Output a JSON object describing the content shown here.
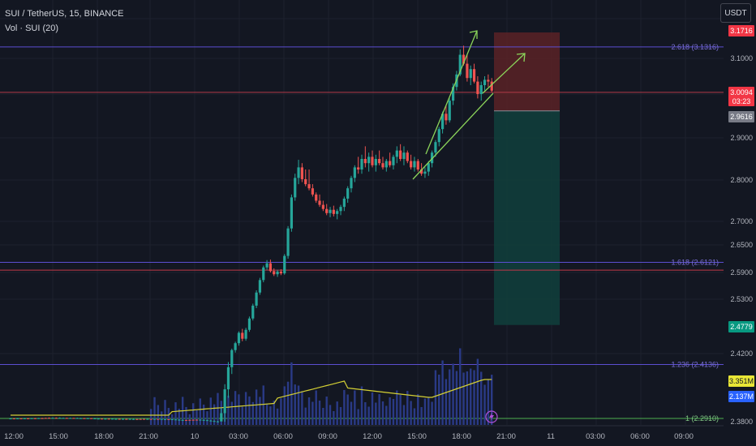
{
  "legend": {
    "symbol": "SUI / TetherUS, 15, BINANCE",
    "volume": "Vol · SUI (20)"
  },
  "currency_button": "USDT",
  "colors": {
    "background": "#131722",
    "grid": "#1e222d",
    "up": "#26a69a",
    "down": "#ef5350",
    "fib_line": "#5b4ed1",
    "fib_label": "#7a6fd6",
    "fib_line_1": "#4caf50",
    "volume_ma": "#d4d034",
    "volume_bar": "#2a3a86",
    "arrow": "#8bd45a",
    "stop_zone": "#5b2226",
    "target_zone": "#11403c"
  },
  "chart_data": {
    "type": "candlestick",
    "symbol": "SUI / TetherUS",
    "interval": "15",
    "exchange": "BINANCE",
    "x_tick_labels": [
      "12:00",
      "15:00",
      "18:00",
      "21:00",
      "10",
      "03:00",
      "06:00",
      "09:00",
      "12:00",
      "15:00",
      "18:00",
      "21:00",
      "11",
      "03:00",
      "06:00",
      "09:00"
    ],
    "y_tick_labels": [
      "3.1000",
      "2.9000",
      "2.8000",
      "2.7000",
      "2.6500",
      "2.5900",
      "2.5300",
      "2.4200",
      "2.3800"
    ],
    "fib_levels": [
      {
        "label": "2.618 (3.1316)",
        "value": 3.1316
      },
      {
        "label": "1.618 (2.6121)",
        "value": 2.6121
      },
      {
        "label": "1.236 (2.4136)",
        "value": 2.4136
      },
      {
        "label": "1 (2.2910)",
        "value": 2.291
      }
    ],
    "price_tags": [
      {
        "text": "3.1716",
        "value": 3.1716,
        "color": "#f23645"
      },
      {
        "text": "3.0094",
        "sub": "03:23",
        "value": 3.0094,
        "color": "#f23645"
      },
      {
        "text": "2.9616",
        "value": 2.9616,
        "color": "#787b86"
      },
      {
        "text": "2.4779",
        "value": 2.4779,
        "color": "#089981"
      },
      {
        "text": "3.351M",
        "color": "#e9e636",
        "text_color": "#131722"
      },
      {
        "text": "2.137M",
        "color": "#2962ff",
        "text_color": "#ffffff"
      }
    ],
    "position": {
      "entry": 2.9616,
      "stop": 3.1716,
      "target": 2.4779
    },
    "last_price": 3.0094,
    "candles": [
      {
        "t": 0,
        "o": 2.2892,
        "h": 2.295,
        "l": 2.2848,
        "c": 2.2921
      },
      {
        "t": 1,
        "o": 2.2921,
        "h": 2.2962,
        "l": 2.2868,
        "c": 2.289
      },
      {
        "t": 2,
        "o": 2.289,
        "h": 2.2939,
        "l": 2.2847,
        "c": 2.2913
      },
      {
        "t": 3,
        "o": 2.2913,
        "h": 2.2958,
        "l": 2.2869,
        "c": 2.2886
      },
      {
        "t": 4,
        "o": 2.2886,
        "h": 2.2925,
        "l": 2.2847,
        "c": 2.2908
      },
      {
        "t": 5,
        "o": 2.2908,
        "h": 2.2945,
        "l": 2.2852,
        "c": 2.2879
      },
      {
        "t": 6,
        "o": 2.2879,
        "h": 2.2916,
        "l": 2.2841,
        "c": 2.2892
      },
      {
        "t": 7,
        "o": 2.2892,
        "h": 2.293,
        "l": 2.2844,
        "c": 2.2868
      },
      {
        "t": 8,
        "o": 2.2868,
        "h": 2.2898,
        "l": 2.2835,
        "c": 2.288
      },
      {
        "t": 9,
        "o": 2.288,
        "h": 2.2911,
        "l": 2.283,
        "c": 2.2855
      },
      {
        "t": 10,
        "o": 2.2855,
        "h": 2.2885,
        "l": 2.2812,
        "c": 2.2836
      },
      {
        "t": 11,
        "o": 2.2836,
        "h": 2.2868,
        "l": 2.2791,
        "c": 2.2815
      },
      {
        "t": 12,
        "o": 2.2815,
        "h": 2.2849,
        "l": 2.278,
        "c": 2.2834
      },
      {
        "t": 13,
        "o": 2.2834,
        "h": 2.2868,
        "l": 2.2794,
        "c": 2.2812
      },
      {
        "t": 14,
        "o": 2.2812,
        "h": 2.2846,
        "l": 2.278,
        "c": 2.283
      },
      {
        "t": 15,
        "o": 2.283,
        "h": 2.2872,
        "l": 2.28,
        "c": 2.2852
      },
      {
        "t": 16,
        "o": 2.2852,
        "h": 2.2888,
        "l": 2.2818,
        "c": 2.284
      },
      {
        "t": 17,
        "o": 2.284,
        "h": 2.2879,
        "l": 2.2804,
        "c": 2.2862
      },
      {
        "t": 18,
        "o": 2.2862,
        "h": 2.2895,
        "l": 2.2828,
        "c": 2.2845
      },
      {
        "t": 19,
        "o": 2.2845,
        "h": 2.288,
        "l": 2.2809,
        "c": 2.2866
      },
      {
        "t": 20,
        "o": 2.2866,
        "h": 2.2902,
        "l": 2.283,
        "c": 2.2884
      },
      {
        "t": 21,
        "o": 2.2884,
        "h": 2.2918,
        "l": 2.2846,
        "c": 2.2868
      },
      {
        "t": 22,
        "o": 2.2868,
        "h": 2.2906,
        "l": 2.2832,
        "c": 2.289
      },
      {
        "t": 23,
        "o": 2.289,
        "h": 2.2925,
        "l": 2.2855,
        "c": 2.2874
      },
      {
        "t": 24,
        "o": 2.2874,
        "h": 2.294,
        "l": 2.284,
        "c": 2.2925
      },
      {
        "t": 25,
        "o": 2.2925,
        "h": 2.2998,
        "l": 2.2888,
        "c": 2.297
      },
      {
        "t": 26,
        "o": 2.297,
        "h": 2.3032,
        "l": 2.293,
        "c": 2.2951
      },
      {
        "t": 27,
        "o": 2.2951,
        "h": 2.3015,
        "l": 2.2918,
        "c": 2.2992
      },
      {
        "t": 28,
        "o": 2.2992,
        "h": 2.3045,
        "l": 2.295,
        "c": 2.2966
      },
      {
        "t": 29,
        "o": 2.2966,
        "h": 2.302,
        "l": 2.2928,
        "c": 2.2998
      },
      {
        "t": 30,
        "o": 2.2998,
        "h": 2.3062,
        "l": 2.2965,
        "c": 2.304
      },
      {
        "t": 31,
        "o": 2.304,
        "h": 2.3098,
        "l": 2.3002,
        "c": 2.3018
      },
      {
        "t": 32,
        "o": 2.3018,
        "h": 2.307,
        "l": 2.298,
        "c": 2.3052
      },
      {
        "t": 33,
        "o": 2.3052,
        "h": 2.3118,
        "l": 2.301,
        "c": 2.303
      },
      {
        "t": 34,
        "o": 2.303,
        "h": 2.3085,
        "l": 2.2992,
        "c": 2.3064
      },
      {
        "t": 35,
        "o": 2.3064,
        "h": 2.3126,
        "l": 2.303,
        "c": 2.3096
      },
      {
        "t": 36,
        "o": 2.3096,
        "h": 2.3148,
        "l": 2.3054,
        "c": 2.307
      },
      {
        "t": 37,
        "o": 2.307,
        "h": 2.312,
        "l": 2.303,
        "c": 2.3045
      },
      {
        "t": 38,
        "o": 2.3045,
        "h": 2.3098,
        "l": 2.3008,
        "c": 2.3022
      },
      {
        "t": 39,
        "o": 2.3022,
        "h": 2.3075,
        "l": 2.2985,
        "c": 2.3054
      },
      {
        "t": 40,
        "o": 2.3054,
        "h": 2.31,
        "l": 2.3012,
        "c": 2.303
      },
      {
        "t": 41,
        "o": 2.303,
        "h": 2.308,
        "l": 2.2995,
        "c": 2.3062
      },
      {
        "t": 42,
        "o": 2.3062,
        "h": 2.311,
        "l": 2.302,
        "c": 2.304
      },
      {
        "t": 43,
        "o": 2.304,
        "h": 2.3092,
        "l": 2.3,
        "c": 2.3078
      },
      {
        "t": 44,
        "o": 2.3078,
        "h": 2.314,
        "l": 2.3042,
        "c": 2.3118
      },
      {
        "t": 45,
        "o": 2.3118,
        "h": 2.317,
        "l": 2.307,
        "c": 2.309
      },
      {
        "t": 46,
        "o": 2.309,
        "h": 2.315,
        "l": 2.305,
        "c": 2.3134
      },
      {
        "t": 47,
        "o": 2.3134,
        "h": 2.3218,
        "l": 2.31,
        "c": 2.319
      },
      {
        "t": 48,
        "o": 2.319,
        "h": 2.3288,
        "l": 2.315,
        "c": 2.326
      },
      {
        "t": 49,
        "o": 2.326,
        "h": 2.3368,
        "l": 2.322,
        "c": 2.334
      },
      {
        "t": 50,
        "o": 2.334,
        "h": 2.3418,
        "l": 2.329,
        "c": 2.331
      },
      {
        "t": 51,
        "o": 2.331,
        "h": 2.337,
        "l": 2.3255,
        "c": 2.328
      },
      {
        "t": 52,
        "o": 2.328,
        "h": 2.334,
        "l": 2.323,
        "c": 2.3255
      },
      {
        "t": 53,
        "o": 2.3255,
        "h": 2.331,
        "l": 2.3205,
        "c": 2.3225
      },
      {
        "t": 54,
        "o": 2.3225,
        "h": 2.3288,
        "l": 2.318,
        "c": 2.3262
      },
      {
        "t": 55,
        "o": 2.3262,
        "h": 2.3345,
        "l": 2.322,
        "c": 2.332
      },
      {
        "t": 56,
        "o": 2.332,
        "h": 2.342,
        "l": 2.3285,
        "c": 2.339
      },
      {
        "t": 57,
        "o": 2.339,
        "h": 2.353,
        "l": 2.335,
        "c": 2.35
      },
      {
        "t": 58,
        "o": 2.35,
        "h": 2.365,
        "l": 2.346,
        "c": 2.362
      },
      {
        "t": 59,
        "o": 2.362,
        "h": 2.377,
        "l": 2.358,
        "c": 2.374
      },
      {
        "t": 60,
        "o": 2.374,
        "h": 2.388,
        "l": 2.369,
        "c": 2.385
      },
      {
        "t": 61,
        "o": 2.385,
        "h": 2.402,
        "l": 2.38,
        "c": 2.399
      },
      {
        "t": 62,
        "o": 2.399,
        "h": 2.415,
        "l": 2.394,
        "c": 2.412
      },
      {
        "t": 63,
        "o": 2.412,
        "h": 2.43,
        "l": 2.408,
        "c": 2.427
      },
      {
        "t": 64,
        "o": 2.427,
        "h": 2.444,
        "l": 2.422,
        "c": 2.441
      },
      {
        "t": 65,
        "o": 2.441,
        "h": 2.465,
        "l": 2.436,
        "c": 2.462
      },
      {
        "t": 66,
        "o": 2.462,
        "h": 2.47,
        "l": 2.445,
        "c": 2.45
      },
      {
        "t": 67,
        "o": 2.45,
        "h": 2.472,
        "l": 2.446,
        "c": 2.468
      },
      {
        "t": 68,
        "o": 2.468,
        "h": 2.495,
        "l": 2.464,
        "c": 2.491
      },
      {
        "t": 69,
        "o": 2.491,
        "h": 2.521,
        "l": 2.487,
        "c": 2.517
      },
      {
        "t": 70,
        "o": 2.517,
        "h": 2.55,
        "l": 2.512,
        "c": 2.545
      },
      {
        "t": 71,
        "o": 2.545,
        "h": 2.578,
        "l": 2.54,
        "c": 2.573
      },
      {
        "t": 72,
        "o": 2.573,
        "h": 2.605,
        "l": 2.568,
        "c": 2.601
      },
      {
        "t": 73,
        "o": 2.601,
        "h": 2.617,
        "l": 2.596,
        "c": 2.61
      },
      {
        "t": 74,
        "o": 2.61,
        "h": 2.618,
        "l": 2.59,
        "c": 2.593
      },
      {
        "t": 75,
        "o": 2.593,
        "h": 2.599,
        "l": 2.582,
        "c": 2.586
      },
      {
        "t": 76,
        "o": 2.586,
        "h": 2.596,
        "l": 2.58,
        "c": 2.592
      },
      {
        "t": 77,
        "o": 2.592,
        "h": 2.597,
        "l": 2.584,
        "c": 2.588
      },
      {
        "t": 78,
        "o": 2.588,
        "h": 2.63,
        "l": 2.585,
        "c": 2.626
      },
      {
        "t": 79,
        "o": 2.626,
        "h": 2.69,
        "l": 2.62,
        "c": 2.685
      },
      {
        "t": 80,
        "o": 2.685,
        "h": 2.765,
        "l": 2.678,
        "c": 2.758
      },
      {
        "t": 81,
        "o": 2.758,
        "h": 2.815,
        "l": 2.75,
        "c": 2.805
      },
      {
        "t": 82,
        "o": 2.805,
        "h": 2.848,
        "l": 2.79,
        "c": 2.83
      },
      {
        "t": 83,
        "o": 2.83,
        "h": 2.84,
        "l": 2.795,
        "c": 2.802
      },
      {
        "t": 84,
        "o": 2.802,
        "h": 2.825,
        "l": 2.785,
        "c": 2.79
      },
      {
        "t": 85,
        "o": 2.79,
        "h": 2.825,
        "l": 2.775,
        "c": 2.78
      },
      {
        "t": 86,
        "o": 2.78,
        "h": 2.79,
        "l": 2.76,
        "c": 2.765
      },
      {
        "t": 87,
        "o": 2.765,
        "h": 2.77,
        "l": 2.745,
        "c": 2.75
      },
      {
        "t": 88,
        "o": 2.75,
        "h": 2.765,
        "l": 2.735,
        "c": 2.74
      },
      {
        "t": 89,
        "o": 2.74,
        "h": 2.75,
        "l": 2.725,
        "c": 2.73
      },
      {
        "t": 90,
        "o": 2.73,
        "h": 2.742,
        "l": 2.715,
        "c": 2.72
      },
      {
        "t": 91,
        "o": 2.72,
        "h": 2.735,
        "l": 2.71,
        "c": 2.728
      },
      {
        "t": 92,
        "o": 2.728,
        "h": 2.738,
        "l": 2.712,
        "c": 2.718
      },
      {
        "t": 93,
        "o": 2.718,
        "h": 2.73,
        "l": 2.705,
        "c": 2.725
      },
      {
        "t": 94,
        "o": 2.725,
        "h": 2.74,
        "l": 2.715,
        "c": 2.735
      },
      {
        "t": 95,
        "o": 2.735,
        "h": 2.76,
        "l": 2.725,
        "c": 2.755
      },
      {
        "t": 96,
        "o": 2.755,
        "h": 2.785,
        "l": 2.745,
        "c": 2.78
      },
      {
        "t": 97,
        "o": 2.78,
        "h": 2.81,
        "l": 2.77,
        "c": 2.805
      },
      {
        "t": 98,
        "o": 2.805,
        "h": 2.835,
        "l": 2.795,
        "c": 2.83
      },
      {
        "t": 99,
        "o": 2.83,
        "h": 2.855,
        "l": 2.815,
        "c": 2.825
      },
      {
        "t": 100,
        "o": 2.825,
        "h": 2.86,
        "l": 2.815,
        "c": 2.85
      },
      {
        "t": 101,
        "o": 2.85,
        "h": 2.88,
        "l": 2.83,
        "c": 2.84
      },
      {
        "t": 102,
        "o": 2.84,
        "h": 2.865,
        "l": 2.82,
        "c": 2.855
      },
      {
        "t": 103,
        "o": 2.855,
        "h": 2.87,
        "l": 2.83,
        "c": 2.835
      },
      {
        "t": 104,
        "o": 2.835,
        "h": 2.86,
        "l": 2.82,
        "c": 2.85
      },
      {
        "t": 105,
        "o": 2.85,
        "h": 2.87,
        "l": 2.835,
        "c": 2.84
      },
      {
        "t": 106,
        "o": 2.84,
        "h": 2.855,
        "l": 2.825,
        "c": 2.83
      },
      {
        "t": 107,
        "o": 2.83,
        "h": 2.85,
        "l": 2.82,
        "c": 2.845
      },
      {
        "t": 108,
        "o": 2.845,
        "h": 2.865,
        "l": 2.83,
        "c": 2.835
      },
      {
        "t": 109,
        "o": 2.835,
        "h": 2.86,
        "l": 2.825,
        "c": 2.855
      },
      {
        "t": 110,
        "o": 2.855,
        "h": 2.88,
        "l": 2.84,
        "c": 2.87
      },
      {
        "t": 111,
        "o": 2.87,
        "h": 2.885,
        "l": 2.845,
        "c": 2.85
      },
      {
        "t": 112,
        "o": 2.85,
        "h": 2.88,
        "l": 2.835,
        "c": 2.865
      },
      {
        "t": 113,
        "o": 2.865,
        "h": 2.87,
        "l": 2.84,
        "c": 2.845
      },
      {
        "t": 114,
        "o": 2.845,
        "h": 2.86,
        "l": 2.825,
        "c": 2.83
      },
      {
        "t": 115,
        "o": 2.83,
        "h": 2.855,
        "l": 2.82,
        "c": 2.845
      },
      {
        "t": 116,
        "o": 2.845,
        "h": 2.85,
        "l": 2.82,
        "c": 2.825
      },
      {
        "t": 117,
        "o": 2.825,
        "h": 2.84,
        "l": 2.81,
        "c": 2.815
      },
      {
        "t": 118,
        "o": 2.815,
        "h": 2.83,
        "l": 2.805,
        "c": 2.82
      },
      {
        "t": 119,
        "o": 2.82,
        "h": 2.845,
        "l": 2.81,
        "c": 2.84
      },
      {
        "t": 120,
        "o": 2.84,
        "h": 2.87,
        "l": 2.83,
        "c": 2.865
      },
      {
        "t": 121,
        "o": 2.865,
        "h": 2.895,
        "l": 2.855,
        "c": 2.89
      },
      {
        "t": 122,
        "o": 2.89,
        "h": 2.925,
        "l": 2.88,
        "c": 2.92
      },
      {
        "t": 123,
        "o": 2.92,
        "h": 2.96,
        "l": 2.91,
        "c": 2.955
      },
      {
        "t": 124,
        "o": 2.955,
        "h": 2.975,
        "l": 2.93,
        "c": 2.94
      },
      {
        "t": 125,
        "o": 2.94,
        "h": 2.99,
        "l": 2.935,
        "c": 2.985
      },
      {
        "t": 126,
        "o": 2.985,
        "h": 3.03,
        "l": 2.975,
        "c": 3.02
      },
      {
        "t": 127,
        "o": 3.02,
        "h": 3.065,
        "l": 3.01,
        "c": 3.055
      },
      {
        "t": 128,
        "o": 3.055,
        "h": 3.125,
        "l": 3.05,
        "c": 3.11
      },
      {
        "t": 129,
        "o": 3.11,
        "h": 3.135,
        "l": 3.08,
        "c": 3.085
      },
      {
        "t": 130,
        "o": 3.085,
        "h": 3.11,
        "l": 3.035,
        "c": 3.045
      },
      {
        "t": 131,
        "o": 3.045,
        "h": 3.08,
        "l": 3.025,
        "c": 3.07
      },
      {
        "t": 132,
        "o": 3.07,
        "h": 3.085,
        "l": 3.03,
        "c": 3.035
      },
      {
        "t": 133,
        "o": 3.035,
        "h": 3.05,
        "l": 2.99,
        "c": 3.0
      },
      {
        "t": 134,
        "o": 3.0,
        "h": 3.035,
        "l": 2.985,
        "c": 3.025
      },
      {
        "t": 135,
        "o": 3.025,
        "h": 3.05,
        "l": 3.01,
        "c": 3.04
      },
      {
        "t": 136,
        "o": 3.04,
        "h": 3.055,
        "l": 3.02,
        "c": 3.035
      },
      {
        "t": 137,
        "o": 3.035,
        "h": 3.045,
        "l": 3.005,
        "c": 3.0094
      }
    ],
    "volume_start_t": 40
  }
}
